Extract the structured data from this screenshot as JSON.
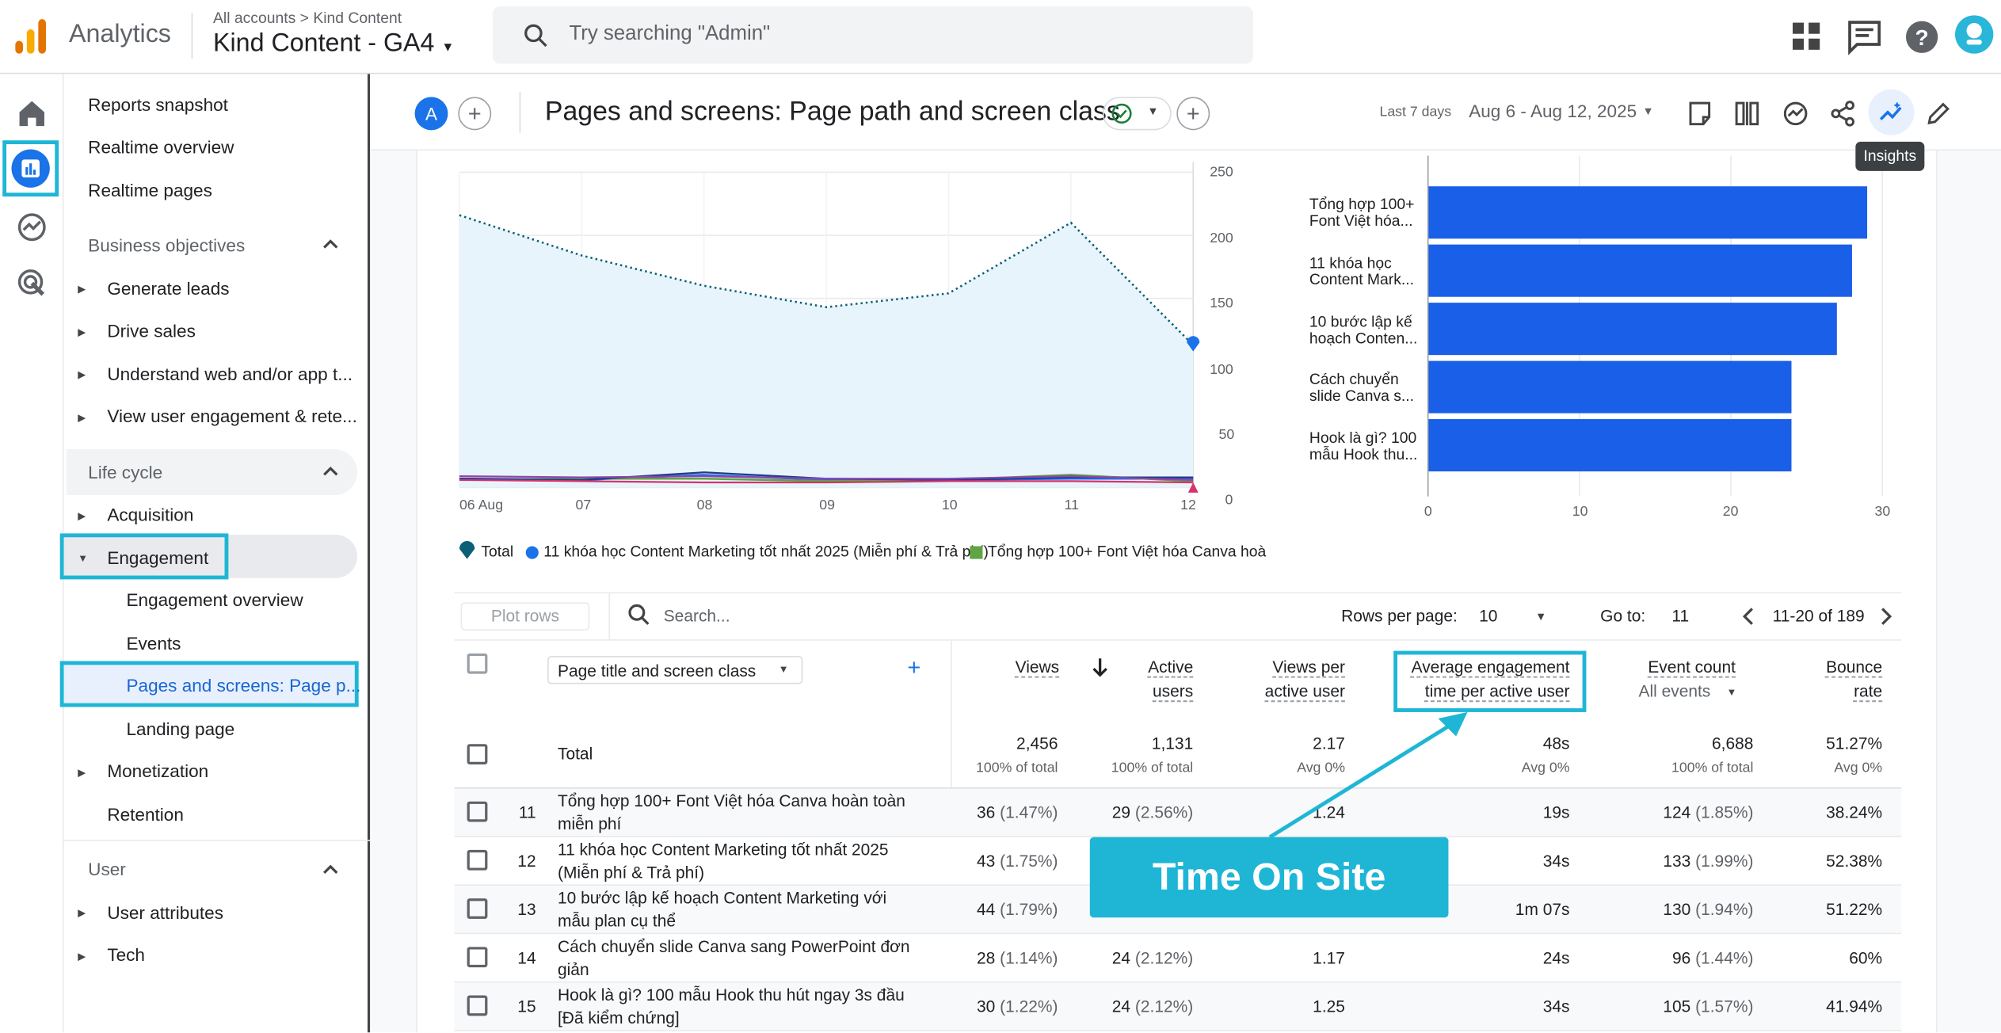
{
  "header": {
    "brand": "Analytics",
    "breadcrumb_accounts": "All accounts",
    "breadcrumb_sep": ">",
    "breadcrumb_account": "Kind Content",
    "property": "Kind Content - GA4",
    "search_placeholder": "Try searching \"Admin\""
  },
  "nav": {
    "top_items": [
      "Reports snapshot",
      "Realtime overview",
      "Realtime pages"
    ],
    "business_objectives": {
      "label": "Business objectives",
      "items": [
        "Generate leads",
        "Drive sales",
        "Understand web and/or app t...",
        "View user engagement & rete..."
      ]
    },
    "life_cycle": {
      "label": "Life cycle",
      "acquisition": "Acquisition",
      "engagement": "Engagement",
      "engagement_children": [
        "Engagement overview",
        "Events",
        "Pages and screens: Page p...",
        "Landing page"
      ],
      "monetization": "Monetization",
      "retention": "Retention"
    },
    "user": {
      "label": "User",
      "items": [
        "User attributes",
        "Tech"
      ]
    }
  },
  "toolbar": {
    "avatar_letter": "A",
    "report_title": "Pages and screens: Page path and screen class",
    "date_label": "Last 7 days",
    "date_range": "Aug 6 - Aug 12, 2025",
    "tooltip": "Insights"
  },
  "chart_data": [
    {
      "type": "line",
      "x": [
        "06 Aug",
        "07",
        "08",
        "09",
        "10",
        "11",
        "12"
      ],
      "ylim": [
        0,
        250
      ],
      "yticks": [
        "250",
        "200",
        "150",
        "100",
        "50",
        "0"
      ],
      "series": [
        {
          "name": "Total",
          "values": [
            216,
            184,
            160,
            143,
            154,
            210,
            113
          ]
        },
        {
          "name": "11 khóa học Content Marketing tốt nhất 2025 (Miễn phí & Trả phí)",
          "values": [
            7,
            6,
            10,
            6,
            6,
            7,
            7
          ]
        },
        {
          "name": "Tổng hợp 100+ Font Việt hóa Canva hoà",
          "values": [
            6,
            7,
            7,
            5,
            6,
            10,
            5
          ]
        }
      ],
      "colors": {
        "total": "#0b5f76",
        "series1": "#1a73e8",
        "series2": "#5fa543",
        "fill": "#e8f4fb"
      }
    },
    {
      "type": "bar",
      "categories": [
        "Tổng hợp 100+ Font Việt hóa...",
        "11 khóa học Content Mark...",
        "10 bước lập kế hoạch Conten...",
        "Cách chuyển slide Canva s...",
        "Hook là gì? 100 mẫu Hook thu..."
      ],
      "values": [
        29,
        28,
        27,
        24,
        24
      ],
      "xlim": [
        0,
        30
      ],
      "xticks": [
        "0",
        "10",
        "20",
        "30"
      ],
      "color": "#1a5fe8"
    }
  ],
  "legend": {
    "total": "Total",
    "series1": "11 khóa học Content Marketing tốt nhất 2025 (Miễn phí & Trả phí)",
    "series2": "Tổng hợp 100+ Font Việt hóa Canva hoà"
  },
  "table_controls": {
    "plot_rows": "Plot rows",
    "search_placeholder": "Search...",
    "rows_per_page_label": "Rows per page:",
    "rows_per_page": "10",
    "goto_label": "Go to:",
    "goto_value": "11",
    "range": "11-20 of 189"
  },
  "table": {
    "dimension": "Page title and screen class",
    "columns": [
      {
        "line1": "Views",
        "line2": ""
      },
      {
        "line1": "Active",
        "line2": "users"
      },
      {
        "line1": "Views per",
        "line2": "active user"
      },
      {
        "line1": "Average engagement",
        "line2": "time per active user"
      },
      {
        "line1": "Event count",
        "line2": ""
      },
      {
        "line1": "Bounce",
        "line2": "rate"
      }
    ],
    "event_filter": "All events",
    "total_label": "Total",
    "totals": [
      "2,456",
      "1,131",
      "2.17",
      "48s",
      "6,688",
      "51.27%"
    ],
    "totals_sub": [
      "100% of total",
      "100% of total",
      "Avg 0%",
      "Avg 0%",
      "100% of total",
      "Avg 0%"
    ],
    "rows": [
      {
        "n": "11",
        "l1": "Tổng hợp 100+ Font Việt hóa Canva hoàn toàn",
        "l2": "miễn phí",
        "views": "36",
        "views_pct": "(1.47%)",
        "users": "29",
        "users_pct": "(2.56%)",
        "vpu": "1.24",
        "aet": "19s",
        "events": "124",
        "events_pct": "(1.85%)",
        "bounce": "38.24%"
      },
      {
        "n": "12",
        "l1": "11 khóa học Content Marketing tốt nhất 2025",
        "l2": "(Miễn phí & Trả phí)",
        "views": "43",
        "views_pct": "(1.75%)",
        "users": "",
        "users_pct": "",
        "vpu": "",
        "aet": "34s",
        "events": "133",
        "events_pct": "(1.99%)",
        "bounce": "52.38%"
      },
      {
        "n": "13",
        "l1": "10 bước lập kế hoạch Content Marketing với",
        "l2": "mẫu plan cụ thể",
        "views": "44",
        "views_pct": "(1.79%)",
        "users": "",
        "users_pct": "",
        "vpu": "",
        "aet": "1m 07s",
        "events": "130",
        "events_pct": "(1.94%)",
        "bounce": "51.22%"
      },
      {
        "n": "14",
        "l1": "Cách chuyển slide Canva sang PowerPoint đơn",
        "l2": "giản",
        "views": "28",
        "views_pct": "(1.14%)",
        "users": "24",
        "users_pct": "(2.12%)",
        "vpu": "1.17",
        "aet": "24s",
        "events": "96",
        "events_pct": "(1.44%)",
        "bounce": "60%"
      },
      {
        "n": "15",
        "l1": "Hook là gì? 100 mẫu Hook thu hút ngay 3s đầu",
        "l2": "[Đã kiểm chứng]",
        "views": "30",
        "views_pct": "(1.22%)",
        "users": "24",
        "users_pct": "(2.12%)",
        "vpu": "1.25",
        "aet": "34s",
        "events": "105",
        "events_pct": "(1.57%)",
        "bounce": "41.94%"
      }
    ]
  },
  "callout": {
    "text": "Time On Site",
    "color": "#1fb6d6"
  }
}
